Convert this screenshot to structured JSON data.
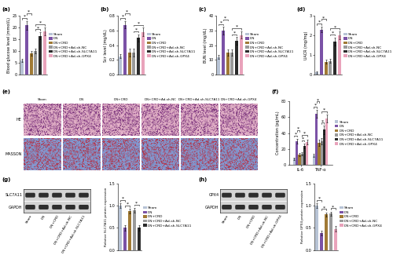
{
  "panel_labels": [
    "(a)",
    "(b)",
    "(c)",
    "(d)",
    "(e)",
    "(f)",
    "(g)",
    "(h)"
  ],
  "chart_data": [
    {
      "type": "bar",
      "y_label": "Blood glucose level (mmol/L)",
      "categories": [
        "Sham",
        "DN",
        "DN+CRD",
        "DN+CRD+Ad-sh-NC",
        "DN+CRD+Ad-sh-SLC7A11",
        "DN+CRD+Ad-sh-GPX4"
      ],
      "values": [
        6,
        21,
        9,
        10,
        16.5,
        18.5
      ],
      "errors": [
        0.8,
        1.8,
        1.0,
        1.1,
        1.5,
        1.6
      ],
      "colors": [
        "#b7c3d5",
        "#7b52a6",
        "#a07a35",
        "#9a9a9a",
        "#2b2b2b",
        "#e9a3bb"
      ],
      "ylim": [
        0,
        25
      ],
      "yticks": [
        0,
        5,
        10,
        15,
        20,
        25
      ],
      "tick_labels": "y",
      "legend": "right",
      "annotations": {
        "text": "*",
        "pairs": [
          [
            "Sham",
            "DN"
          ],
          [
            "DN",
            "DN+CRD"
          ],
          [
            "DN+CRD+Ad-sh-NC",
            "DN+CRD+Ad-sh-SLC7A11"
          ],
          [
            "DN+CRD+Ad-sh-NC",
            "DN+CRD+Ad-sh-GPX4"
          ]
        ]
      }
    },
    {
      "type": "bar",
      "y_label": "Scr level (mg/dL)",
      "categories": [
        "Sham",
        "DN",
        "DN+CRD",
        "DN+CRD+Ad-sh-NC",
        "DN+CRD+Ad-sh-SLC7A11",
        "DN+CRD+Ad-sh-GPX4"
      ],
      "values": [
        0.25,
        0.68,
        0.3,
        0.3,
        0.5,
        0.58
      ],
      "errors": [
        0.03,
        0.05,
        0.05,
        0.05,
        0.05,
        0.06
      ],
      "colors": [
        "#b7c3d5",
        "#7b52a6",
        "#a07a35",
        "#9a9a9a",
        "#2b2b2b",
        "#e9a3bb"
      ],
      "ylim": [
        0,
        0.8
      ],
      "yticks": [
        {
          "value": 0,
          "label": "0.0"
        },
        0.2,
        0.4,
        0.6,
        0.8
      ],
      "tick_labels": "y",
      "legend": "right",
      "annotations": {
        "text": "*",
        "pairs": [
          [
            "Sham",
            "DN"
          ],
          [
            "DN",
            "DN+CRD"
          ],
          [
            "DN+CRD+Ad-sh-NC",
            "DN+CRD+Ad-sh-SLC7A11"
          ],
          [
            "DN+CRD+Ad-sh-NC",
            "DN+CRD+Ad-sh-GPX4"
          ]
        ]
      }
    },
    {
      "type": "bar",
      "y_label": "BUN level (mg/dL)",
      "categories": [
        "Sham",
        "DN",
        "DN+CRD",
        "DN+CRD+Ad-sh-NC",
        "DN+CRD+Ad-sh-SLC7A11",
        "DN+CRD+Ad-sh-GPX4"
      ],
      "values": [
        12,
        30,
        15,
        15,
        23,
        27
      ],
      "errors": [
        1.5,
        2.5,
        2,
        2,
        2.5,
        2.5
      ],
      "colors": [
        "#b7c3d5",
        "#7b52a6",
        "#a07a35",
        "#9a9a9a",
        "#2b2b2b",
        "#e9a3bb"
      ],
      "ylim": [
        0,
        40
      ],
      "yticks": [
        0,
        10,
        20,
        30,
        40
      ],
      "tick_labels": "y",
      "legend": "right",
      "annotations": {
        "text": "*",
        "pairs": [
          [
            "Sham",
            "DN"
          ],
          [
            "DN",
            "DN+CRD"
          ],
          [
            "DN+CRD+Ad-sh-NC",
            "DN+CRD+Ad-sh-SLC7A11"
          ],
          [
            "DN+CRD+Ad-sh-NC",
            "DN+CRD+Ad-sh-GPX4"
          ]
        ]
      }
    },
    {
      "type": "bar",
      "y_label": "UACR (mg/mg)",
      "categories": [
        "Sham",
        "DN",
        "DN+CRD",
        "DN+CRD+Ad-sh-NC",
        "DN+CRD+Ad-sh-SLC7A11",
        "DN+CRD+Ad-sh-GPX4"
      ],
      "values": [
        0.1,
        2.3,
        0.65,
        0.7,
        1.7,
        2.0
      ],
      "errors": [
        0.05,
        0.15,
        0.1,
        0.1,
        0.2,
        0.2
      ],
      "colors": [
        "#b7c3d5",
        "#7b52a6",
        "#a07a35",
        "#9a9a9a",
        "#2b2b2b",
        "#e9a3bb"
      ],
      "ylim": [
        0,
        3
      ],
      "yticks": [
        0,
        1,
        2,
        3
      ],
      "tick_labels": "y",
      "legend": "right",
      "annotations": {
        "text": "*",
        "pairs": [
          [
            "Sham",
            "DN"
          ],
          [
            "DN",
            "DN+CRD"
          ],
          [
            "DN+CRD+Ad-sh-NC",
            "DN+CRD+Ad-sh-SLC7A11"
          ],
          [
            "DN+CRD+Ad-sh-NC",
            "DN+CRD+Ad-sh-GPX4"
          ]
        ]
      }
    },
    {
      "type": "grouped_bar",
      "y_label": "Concentration (pg/mL)",
      "categories": [
        "IL-6",
        "TNF-α"
      ],
      "series": [
        {
          "name": "Sham",
          "color": "#b7c3d5",
          "values": [
            8,
            12
          ],
          "errors": [
            1.5,
            2
          ]
        },
        {
          "name": "DN",
          "color": "#7b52a6",
          "values": [
            30,
            64
          ],
          "errors": [
            3,
            5
          ]
        },
        {
          "name": "DN+CRD",
          "color": "#a07a35",
          "values": [
            13,
            28
          ],
          "errors": [
            2,
            4
          ]
        },
        {
          "name": "DN+CRD+Ad-sh-NC",
          "color": "#9a9a9a",
          "values": [
            14,
            30
          ],
          "errors": [
            2,
            4
          ]
        },
        {
          "name": "DN+CRD+Ad-sh-SLC7A11",
          "color": "#2b2b2b",
          "values": [
            24,
            44
          ],
          "errors": [
            3,
            5
          ]
        },
        {
          "name": "DN+CRD+Ad-sh-GPX4",
          "color": "#e9a3bb",
          "values": [
            29,
            58
          ],
          "errors": [
            3,
            5
          ]
        }
      ],
      "ylim": [
        0,
        80
      ],
      "yticks": [
        0,
        20,
        40,
        60,
        80
      ],
      "legend": "right",
      "annotations": {
        "text": "*",
        "pairs": [
          [
            "Sham",
            "DN"
          ],
          [
            "DN",
            "DN+CRD"
          ],
          [
            "DN+CRD+Ad-sh-NC",
            "DN+CRD+Ad-sh-SLC7A11"
          ],
          [
            "DN+CRD+Ad-sh-NC",
            "DN+CRD+Ad-sh-GPX4"
          ]
        ]
      }
    },
    {
      "type": "bar",
      "y_label": "Relative SLC7A11 protein expression",
      "categories": [
        "Sham",
        "DN",
        "DN+CRD",
        "DN+CRD+Ad-sh-NC",
        "DN+CRD+Ad-sh-SLC7A11"
      ],
      "values": [
        1.0,
        0.5,
        0.88,
        0.9,
        0.5
      ],
      "errors": [
        0.05,
        0.06,
        0.05,
        0.05,
        0.06
      ],
      "colors": [
        "#b7c3d5",
        "#7b52a6",
        "#a07a35",
        "#9a9a9a",
        "#2b2b2b"
      ],
      "ylim": [
        0,
        1.5
      ],
      "yticks": [
        {
          "value": 0,
          "label": "0.0"
        },
        0.5,
        {
          "value": 1,
          "label": "1.0"
        },
        1.5
      ],
      "tick_labels": "y",
      "legend": "right",
      "annotations": {
        "text": "*",
        "pairs": [
          [
            "Sham",
            "DN"
          ],
          [
            "DN",
            "DN+CRD"
          ],
          [
            "DN+CRD+Ad-sh-NC",
            "DN+CRD+Ad-sh-SLC7A11"
          ]
        ]
      }
    },
    {
      "type": "bar",
      "y_label": "Relative GPX4 protein expression",
      "categories": [
        "Sham",
        "DN",
        "DN+CRD",
        "DN+CRD+Ad-sh-NC",
        "DN+CRD+Ad-sh-GPX4"
      ],
      "values": [
        1.0,
        0.38,
        0.8,
        0.82,
        0.48
      ],
      "errors": [
        0.05,
        0.05,
        0.05,
        0.05,
        0.06
      ],
      "colors": [
        "#b7c3d5",
        "#7b52a6",
        "#a07a35",
        "#9a9a9a",
        "#e9a3bb"
      ],
      "ylim": [
        0,
        1.5
      ],
      "yticks": [
        {
          "value": 0,
          "label": "0.0"
        },
        0.5,
        {
          "value": 1,
          "label": "1.0"
        },
        1.5
      ],
      "tick_labels": "y",
      "legend": "right",
      "annotations": {
        "text": "*",
        "pairs": [
          [
            "Sham",
            "DN"
          ],
          [
            "DN",
            "DN+CRD"
          ],
          [
            "DN+CRD+Ad-sh-NC",
            "DN+CRD+Ad-sh-GPX4"
          ]
        ]
      }
    }
  ],
  "histology": {
    "columns": [
      "Sham",
      "DN",
      "DN+CRD",
      "DN+CRD+Ad-sh-NC",
      "DN+CRD+Ad-sh-SLC7A11",
      "DN+CRD+Ad-sh-GPX4"
    ],
    "rows": [
      "HE",
      "MASSON"
    ]
  },
  "blots": [
    {
      "rows": [
        "SLC7A11",
        "GAPDH"
      ],
      "lanes": [
        "Sham",
        "DN",
        "DN+CRD",
        "DN+CRD+Ad-sh-NC",
        "DN+CRD+Ad-sh-SLC7A11"
      ]
    },
    {
      "rows": [
        "GPX4",
        "GAPDH"
      ],
      "lanes": [
        "Sham",
        "DN",
        "DN+CRD",
        "DN+CRD+Ad-sh-NC",
        "DN+CRD+Ad-sh-GPX4"
      ]
    }
  ]
}
